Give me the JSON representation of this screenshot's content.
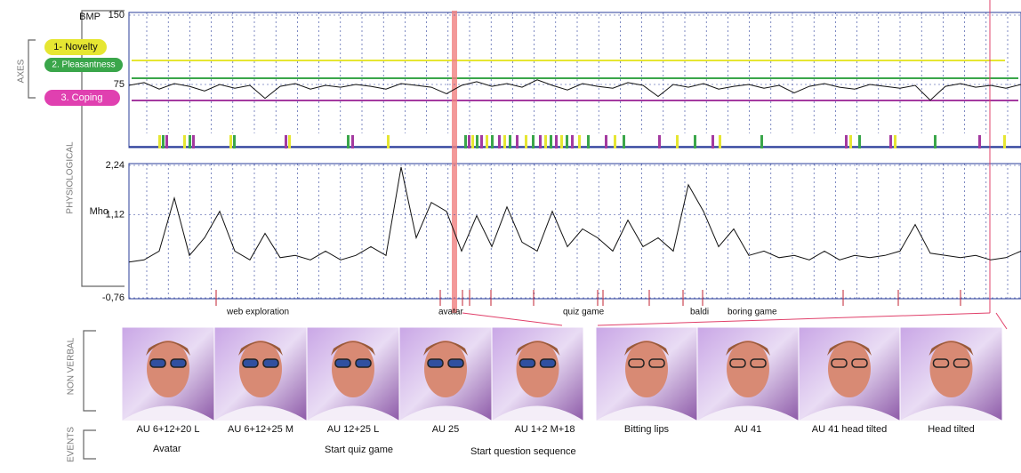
{
  "side_labels": {
    "axes": "AXES",
    "physiological": "PHYSIOLOGICAL",
    "non_verbal": "NON VERBAL",
    "events": "EVENTS"
  },
  "legend": [
    "1- Novelty",
    "2. Pleasantness",
    "3. Coping"
  ],
  "bmp_chart": {
    "type": "line",
    "unit": "BMP",
    "ylim": [
      0,
      150
    ],
    "yticks": [
      150,
      75
    ],
    "values": [
      74,
      77,
      70,
      76,
      73,
      68,
      75,
      71,
      74,
      60,
      73,
      76,
      70,
      74,
      72,
      75,
      73,
      70,
      76,
      74,
      72,
      65,
      74,
      78,
      73,
      76,
      72,
      80,
      74,
      69,
      76,
      73,
      71,
      77,
      74,
      62,
      75,
      72,
      76,
      70,
      73,
      75,
      71,
      74,
      66,
      73,
      76,
      72,
      70,
      75,
      73,
      71,
      74,
      58,
      73,
      76,
      72,
      74,
      71,
      75
    ]
  },
  "gsr_chart": {
    "type": "line",
    "unit": "Mho",
    "ylim": [
      -0.76,
      2.24
    ],
    "yticks": [
      {
        "value": 2.24,
        "label": "2,24"
      },
      {
        "value": 1.12,
        "label": "1,12"
      },
      {
        "value": -0.76,
        "label": "-0,76"
      }
    ],
    "values": [
      0.05,
      0.1,
      0.3,
      1.5,
      0.2,
      0.6,
      1.2,
      0.3,
      0.1,
      0.7,
      0.15,
      0.2,
      0.1,
      0.3,
      0.1,
      0.2,
      0.4,
      0.2,
      2.2,
      0.6,
      1.4,
      1.2,
      0.3,
      1.1,
      0.4,
      1.3,
      0.5,
      0.3,
      1.2,
      0.4,
      0.8,
      0.6,
      0.3,
      1.0,
      0.4,
      0.6,
      0.3,
      1.8,
      1.2,
      0.4,
      0.8,
      0.2,
      0.3,
      0.15,
      0.2,
      0.1,
      0.3,
      0.1,
      0.2,
      0.15,
      0.2,
      0.3,
      0.9,
      0.25,
      0.2,
      0.15,
      0.2,
      0.1,
      0.15,
      0.3
    ]
  },
  "event_labels": [
    "web exploration",
    "avatar",
    "quiz game",
    "baldi",
    "boring game"
  ],
  "photo_captions": [
    "AU 6+12+20 L",
    "AU 6+12+25 M",
    "AU 12+25 L",
    "AU 25",
    "AU 1+2 M+18",
    "Bitting lips",
    "AU 41",
    "AU 41 head tilted",
    "Head tilted"
  ],
  "event_captions": [
    "Avatar",
    "Start quiz game",
    "Start question sequence"
  ]
}
